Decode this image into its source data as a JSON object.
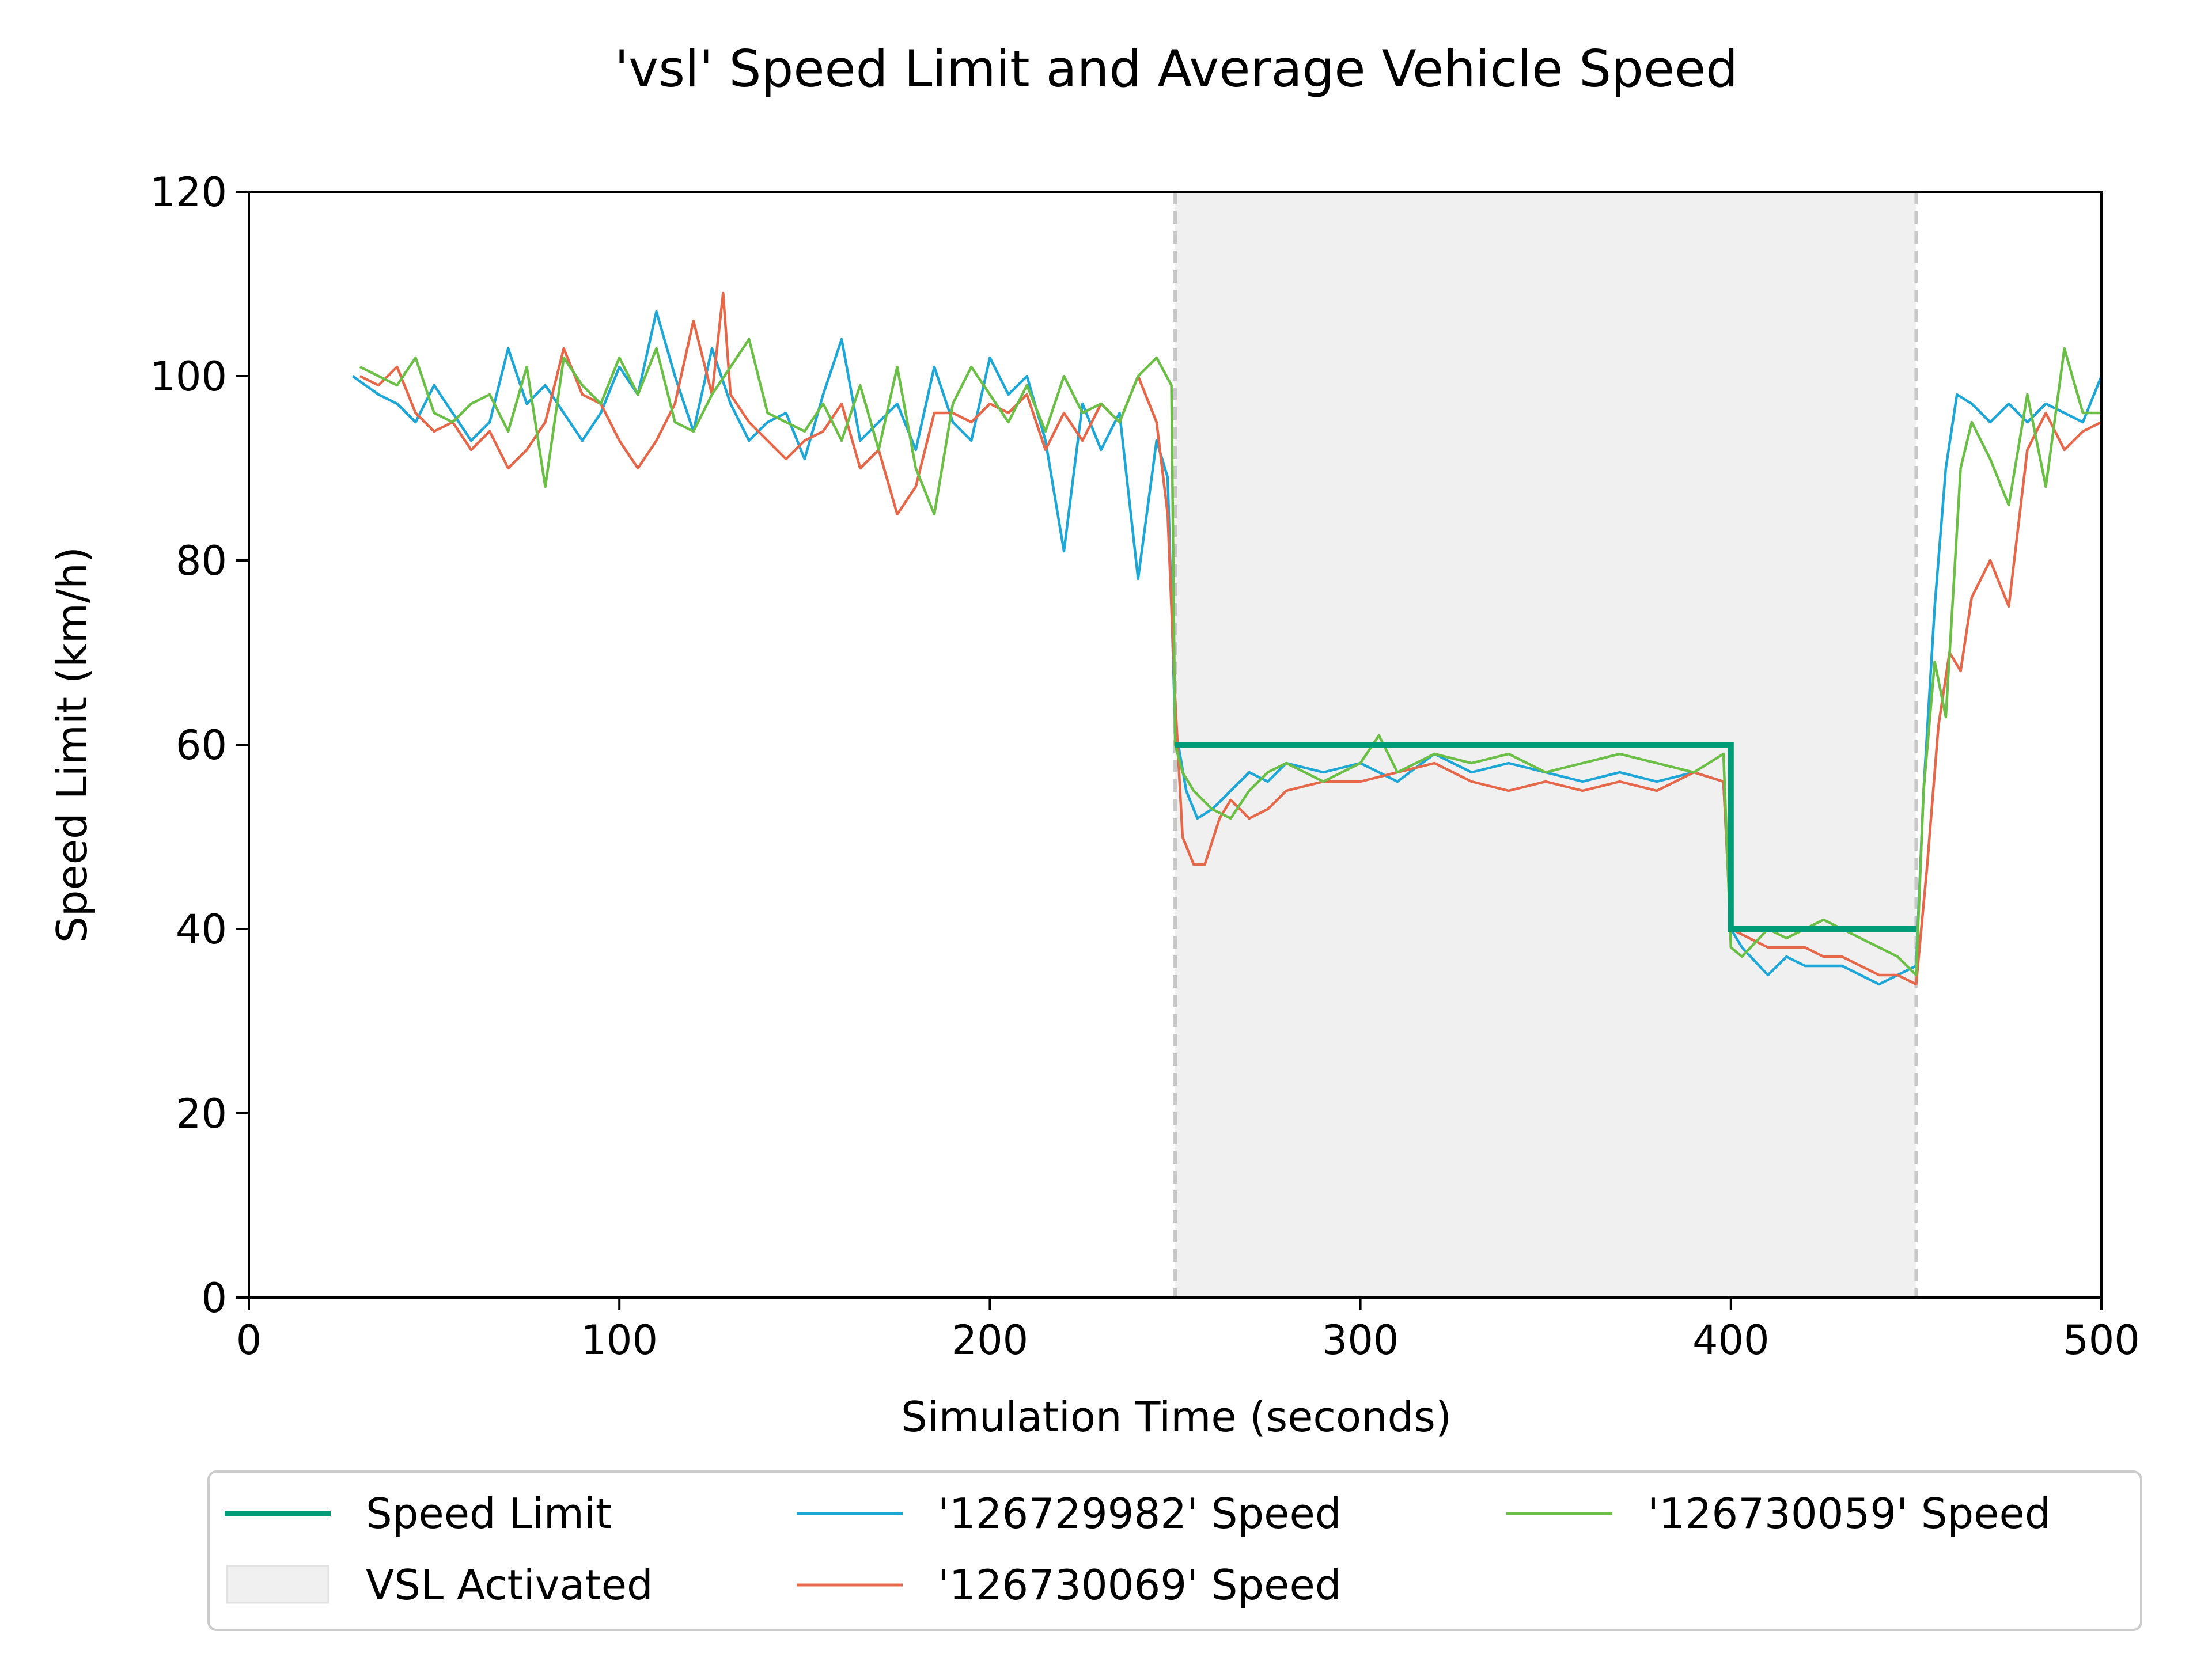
{
  "chart_data": {
    "type": "line",
    "title": "'vsl' Speed Limit and Average Vehicle Speed",
    "xlabel": "Simulation Time (seconds)",
    "ylabel": "Speed Limit (km/h)",
    "xlim": [
      0,
      500
    ],
    "ylim": [
      0,
      120
    ],
    "xticks": [
      0,
      100,
      200,
      300,
      400,
      500
    ],
    "yticks": [
      0,
      20,
      40,
      60,
      80,
      100,
      120
    ],
    "grid": false,
    "legend_position": "bottom-center",
    "vsl_activated": {
      "label": "VSL Activated",
      "x_start": 250,
      "x_end": 450,
      "color": "#f0f0f0"
    },
    "speed_limit": {
      "name": "Speed Limit",
      "color": "#009b77",
      "x": [
        250,
        400,
        400,
        450
      ],
      "y": [
        60,
        60,
        40,
        40
      ]
    },
    "series": [
      {
        "name": "'126729982' Speed",
        "color": "#1ea7d6",
        "x": [
          28,
          35,
          40,
          45,
          50,
          55,
          60,
          65,
          70,
          75,
          80,
          85,
          90,
          95,
          100,
          105,
          110,
          115,
          120,
          125,
          130,
          135,
          140,
          145,
          150,
          155,
          160,
          165,
          170,
          175,
          180,
          185,
          190,
          195,
          200,
          205,
          210,
          215,
          220,
          225,
          230,
          235,
          240,
          245,
          248,
          250,
          253,
          256,
          260,
          265,
          270,
          275,
          280,
          290,
          300,
          310,
          320,
          330,
          340,
          350,
          360,
          370,
          380,
          390,
          398,
          400,
          403,
          410,
          415,
          420,
          425,
          430,
          435,
          440,
          445,
          450,
          452,
          455,
          458,
          461,
          465,
          470,
          475,
          480,
          485,
          490,
          495,
          500
        ],
        "y": [
          100,
          98,
          97,
          95,
          99,
          96,
          93,
          95,
          103,
          97,
          99,
          96,
          93,
          96,
          101,
          98,
          107,
          100,
          94,
          103,
          97,
          93,
          95,
          96,
          91,
          98,
          104,
          93,
          95,
          97,
          92,
          101,
          95,
          93,
          102,
          98,
          100,
          93,
          81,
          97,
          92,
          96,
          78,
          93,
          89,
          62,
          55,
          52,
          53,
          55,
          57,
          56,
          58,
          57,
          58,
          56,
          59,
          57,
          58,
          57,
          56,
          57,
          56,
          57,
          56,
          40,
          38,
          35,
          37,
          36,
          36,
          36,
          35,
          34,
          35,
          36,
          55,
          75,
          90,
          98,
          97,
          95,
          97,
          95,
          97,
          96,
          95,
          100
        ]
      },
      {
        "name": "'126730069' Speed",
        "color": "#e5684a",
        "x": [
          30,
          35,
          40,
          45,
          50,
          55,
          60,
          65,
          70,
          75,
          80,
          85,
          90,
          95,
          100,
          105,
          110,
          115,
          120,
          125,
          128,
          130,
          135,
          140,
          145,
          150,
          155,
          160,
          165,
          170,
          175,
          180,
          185,
          190,
          195,
          200,
          205,
          210,
          215,
          220,
          225,
          230,
          235,
          240,
          245,
          248,
          250,
          252,
          255,
          258,
          262,
          265,
          270,
          275,
          280,
          290,
          300,
          310,
          320,
          330,
          340,
          350,
          360,
          370,
          380,
          390,
          398,
          400,
          405,
          410,
          415,
          420,
          425,
          430,
          435,
          440,
          445,
          450,
          453,
          456,
          459,
          462,
          465,
          470,
          475,
          480,
          485,
          490,
          495,
          500
        ],
        "y": [
          100,
          99,
          101,
          96,
          94,
          95,
          92,
          94,
          90,
          92,
          95,
          103,
          98,
          97,
          93,
          90,
          93,
          97,
          106,
          98,
          109,
          98,
          95,
          93,
          91,
          93,
          94,
          97,
          90,
          92,
          85,
          88,
          96,
          96,
          95,
          97,
          96,
          98,
          92,
          96,
          93,
          97,
          95,
          100,
          95,
          85,
          65,
          50,
          47,
          47,
          52,
          54,
          52,
          53,
          55,
          56,
          56,
          57,
          58,
          56,
          55,
          56,
          55,
          56,
          55,
          57,
          56,
          40,
          39,
          38,
          38,
          38,
          37,
          37,
          36,
          35,
          35,
          34,
          47,
          62,
          70,
          68,
          76,
          80,
          75,
          92,
          96,
          92,
          94,
          95
        ]
      },
      {
        "name": "'126730059' Speed",
        "color": "#6cbf46",
        "x": [
          30,
          35,
          40,
          45,
          50,
          55,
          60,
          65,
          70,
          75,
          80,
          85,
          90,
          95,
          100,
          105,
          110,
          115,
          120,
          125,
          130,
          135,
          140,
          145,
          150,
          155,
          160,
          165,
          170,
          175,
          180,
          185,
          190,
          195,
          200,
          205,
          210,
          215,
          220,
          225,
          230,
          235,
          240,
          245,
          249,
          250,
          252,
          255,
          260,
          265,
          270,
          275,
          280,
          290,
          300,
          305,
          310,
          320,
          330,
          340,
          350,
          360,
          370,
          380,
          390,
          398,
          400,
          403,
          410,
          415,
          420,
          425,
          430,
          435,
          440,
          445,
          450,
          452,
          455,
          458,
          462,
          465,
          470,
          475,
          480,
          485,
          490,
          495,
          500
        ],
        "y": [
          101,
          100,
          99,
          102,
          96,
          95,
          97,
          98,
          94,
          101,
          88,
          102,
          99,
          97,
          102,
          98,
          103,
          95,
          94,
          98,
          101,
          104,
          96,
          95,
          94,
          97,
          93,
          99,
          92,
          101,
          90,
          85,
          97,
          101,
          98,
          95,
          99,
          94,
          100,
          96,
          97,
          95,
          100,
          102,
          99,
          60,
          57,
          55,
          53,
          52,
          55,
          57,
          58,
          56,
          58,
          61,
          57,
          59,
          58,
          59,
          57,
          58,
          59,
          58,
          57,
          59,
          38,
          37,
          40,
          39,
          40,
          41,
          40,
          39,
          38,
          37,
          35,
          55,
          69,
          63,
          90,
          95,
          91,
          86,
          98,
          88,
          103,
          96,
          96
        ]
      }
    ]
  }
}
